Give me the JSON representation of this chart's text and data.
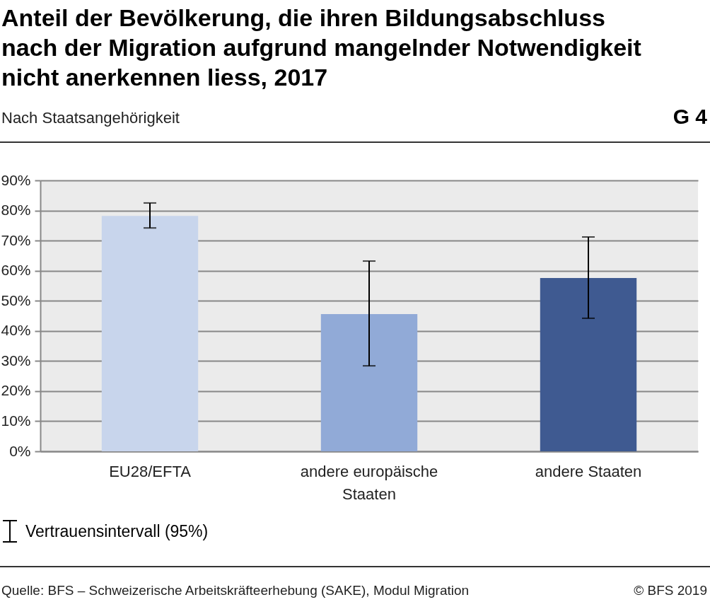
{
  "chart_data": {
    "type": "bar",
    "title": "Anteil der Bevölkerung, die ihren Bildungsabschluss nach der Migration aufgrund mangelnder Notwendigkeit nicht anerkennen liess, 2017",
    "subtitle": "Nach Staatsangehörigkeit",
    "categories": [
      "EU28/EFTA",
      "andere europäische Staaten",
      "andere Staaten"
    ],
    "values": [
      78.2,
      45.6,
      57.6
    ],
    "colors": [
      "#c8d5ec",
      "#91aad7",
      "#3f5a91"
    ],
    "errors": [
      [
        74.2,
        82.5
      ],
      [
        28.4,
        63.2
      ],
      [
        44.2,
        71.2
      ]
    ],
    "ylim": [
      0,
      90
    ],
    "yticks": [
      {
        "value": 0,
        "label": "0%"
      },
      {
        "value": 10,
        "label": "10%"
      },
      {
        "value": 20,
        "label": "20%"
      },
      {
        "value": 30,
        "label": "30%"
      },
      {
        "value": 40,
        "label": "40%"
      },
      {
        "value": 50,
        "label": "50%"
      },
      {
        "value": 60,
        "label": "60%"
      },
      {
        "value": 70,
        "label": "70%"
      },
      {
        "value": 80,
        "label": "80%"
      },
      {
        "value": 90,
        "label": "90%"
      }
    ],
    "grid": "y",
    "annotations": [
      "G 4",
      "Vertrauensintervall (95%)",
      "Quelle: BFS – Schweizerische Arbeitskräfteerhebung (SAKE), Modul Migration",
      "© BFS 2019"
    ]
  }
}
